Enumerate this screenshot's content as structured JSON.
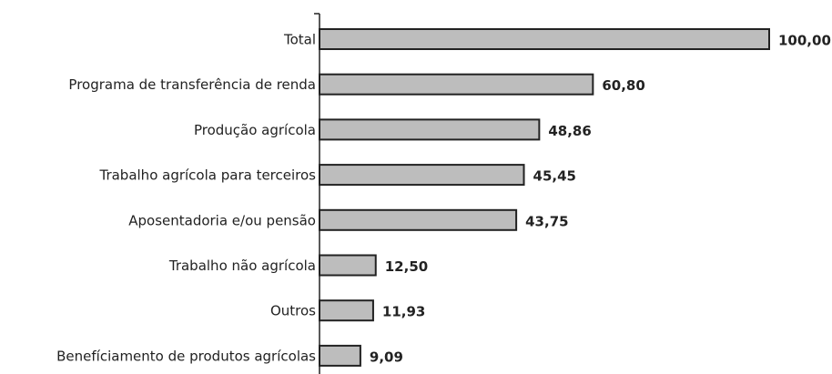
{
  "chart_data": {
    "type": "bar",
    "orientation": "horizontal",
    "categories": [
      "Total",
      "Programa de transferência de renda",
      "Produção agrícola",
      "Trabalho agrícola para terceiros",
      "Aposentadoria e/ou pensão",
      "Trabalho não agrícola",
      "Outros",
      "Benefíciamento de produtos agrícolas"
    ],
    "values": [
      100,
      60.8,
      48.86,
      45.45,
      43.75,
      12.5,
      11.93,
      9.09
    ],
    "value_labels": [
      "100,00",
      "60,80",
      "48,86",
      "45,45",
      "43,75",
      "12,50",
      "11,93",
      "9,09"
    ],
    "color": "#bdbdbd"
  }
}
